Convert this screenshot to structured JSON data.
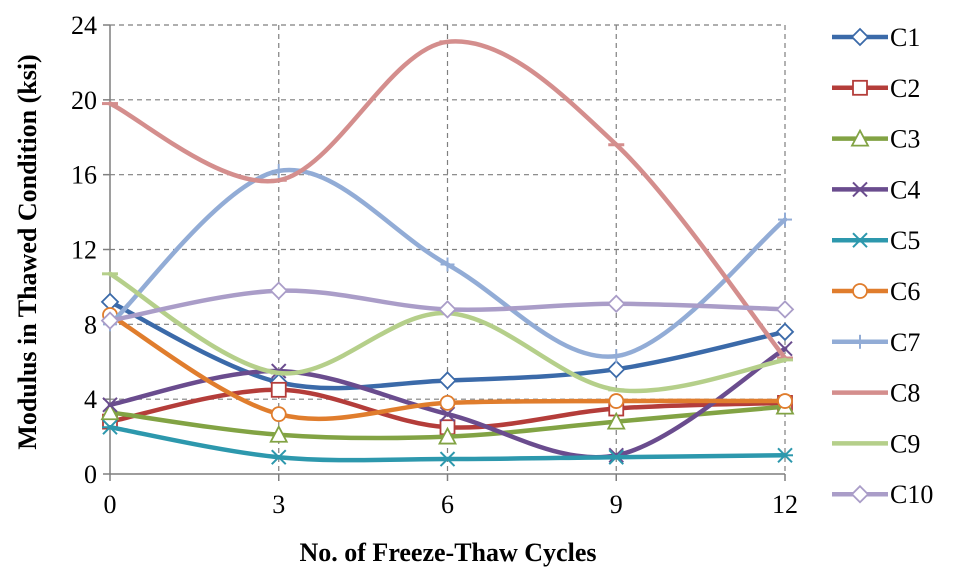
{
  "chart_data": {
    "type": "line",
    "title": "",
    "xlabel": "No. of Freeze-Thaw Cycles",
    "ylabel": "Modulus in Thawed Condition (ksi)",
    "x": [
      0,
      3,
      6,
      9,
      12
    ],
    "xticks": [
      0,
      3,
      6,
      9,
      12
    ],
    "yticks": [
      0,
      4,
      8,
      12,
      16,
      20,
      24
    ],
    "xlim": [
      0,
      12
    ],
    "ylim": [
      0,
      24
    ],
    "grid": "dashed major gridlines on both axes",
    "smooth": true,
    "legend_position": "right",
    "series": [
      {
        "name": "C1",
        "marker": "diamond",
        "color": "#3B6AA9",
        "values": [
          9.2,
          4.9,
          5.0,
          5.6,
          7.6
        ]
      },
      {
        "name": "C2",
        "marker": "square",
        "color": "#B43D3A",
        "values": [
          2.8,
          4.5,
          2.5,
          3.5,
          3.8
        ]
      },
      {
        "name": "C3",
        "marker": "triangle",
        "color": "#82A344",
        "values": [
          3.3,
          2.1,
          2.0,
          2.8,
          3.6
        ]
      },
      {
        "name": "C4",
        "marker": "x",
        "color": "#6A4C8E",
        "values": [
          3.7,
          5.5,
          3.2,
          1.0,
          6.7
        ]
      },
      {
        "name": "C5",
        "marker": "asterisk",
        "color": "#2D98AD",
        "values": [
          2.5,
          0.9,
          0.8,
          0.9,
          1.0
        ]
      },
      {
        "name": "C6",
        "marker": "circle",
        "color": "#E07D2D",
        "values": [
          8.5,
          3.2,
          3.8,
          3.9,
          3.9
        ]
      },
      {
        "name": "C7",
        "marker": "plus",
        "color": "#92ACD6",
        "values": [
          8.0,
          16.2,
          11.2,
          6.3,
          13.6
        ]
      },
      {
        "name": "C8",
        "marker": "dash",
        "color": "#D48E8D",
        "values": [
          19.8,
          15.7,
          23.1,
          17.6,
          6.2
        ]
      },
      {
        "name": "C9",
        "marker": "dash",
        "color": "#B5CF8A",
        "values": [
          10.7,
          5.4,
          8.6,
          4.5,
          6.1
        ]
      },
      {
        "name": "C10",
        "marker": "diamond",
        "color": "#AA9DC8",
        "values": [
          8.2,
          9.8,
          8.8,
          9.1,
          8.8
        ]
      }
    ]
  }
}
